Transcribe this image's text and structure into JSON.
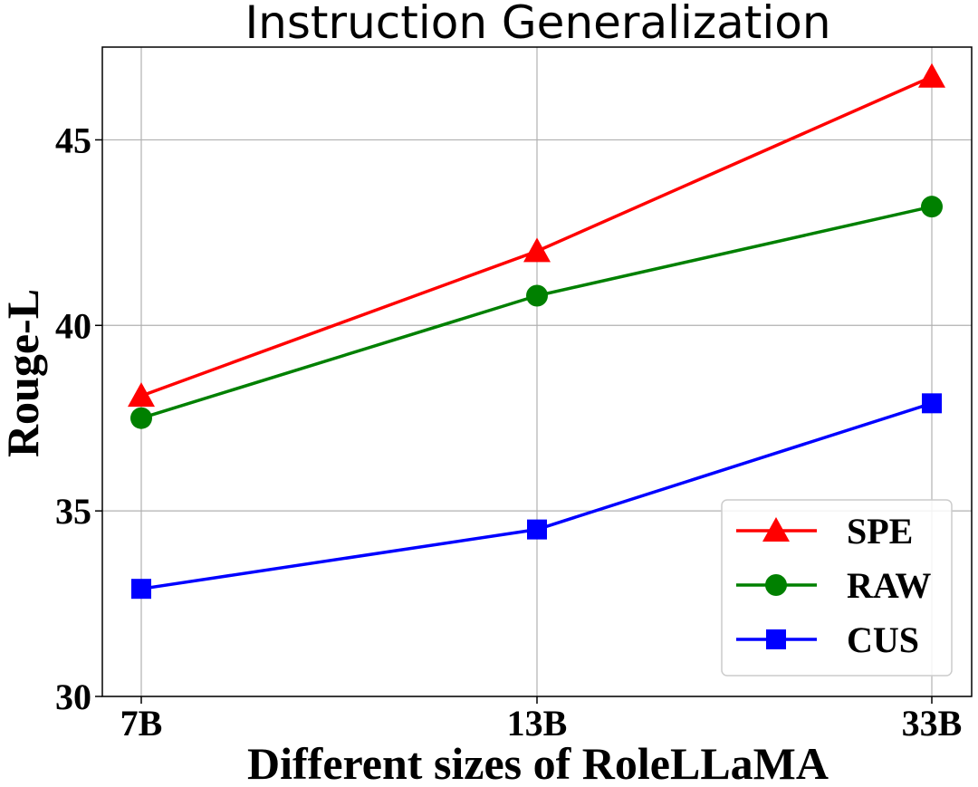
{
  "chart_data": {
    "type": "line",
    "title": "Instruction Generalization",
    "xlabel": "Different sizes of RoleLLaMA",
    "ylabel": "Rouge-L",
    "categories": [
      "7B",
      "13B",
      "33B"
    ],
    "ylim": [
      30,
      47.5
    ],
    "yticks": [
      30,
      35,
      40,
      45
    ],
    "grid": true,
    "legend_position": "lower-right",
    "series": [
      {
        "name": "SPE",
        "values": [
          38.1,
          42.0,
          46.7
        ],
        "color": "#ff0000",
        "marker": "triangle"
      },
      {
        "name": "RAW",
        "values": [
          37.5,
          40.8,
          43.2
        ],
        "color": "#008000",
        "marker": "circle"
      },
      {
        "name": "CUS",
        "values": [
          32.9,
          34.5,
          37.9
        ],
        "color": "#0000ff",
        "marker": "square"
      }
    ]
  }
}
